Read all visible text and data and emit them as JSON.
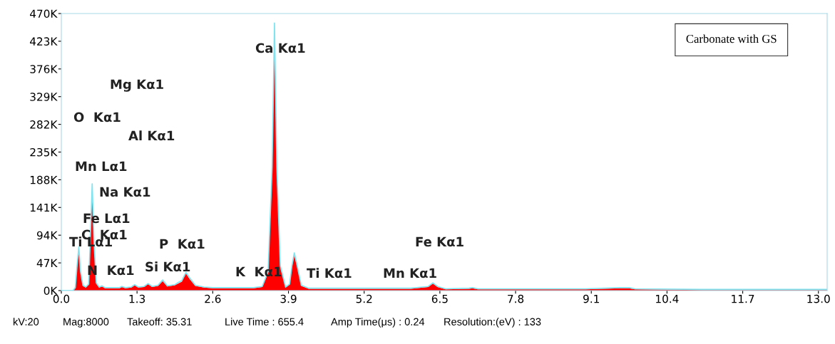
{
  "chart_data": {
    "type": "area",
    "x": [
      0.0,
      0.2,
      0.24,
      0.27,
      0.3,
      0.33,
      0.37,
      0.42,
      0.47,
      0.5,
      0.53,
      0.56,
      0.6,
      0.65,
      0.7,
      0.75,
      0.9,
      1.0,
      1.04,
      1.1,
      1.2,
      1.26,
      1.32,
      1.42,
      1.49,
      1.56,
      1.66,
      1.74,
      1.82,
      1.95,
      2.01,
      2.07,
      2.14,
      2.2,
      2.3,
      2.45,
      2.6,
      3.0,
      3.3,
      3.45,
      3.55,
      3.62,
      3.66,
      3.7,
      3.76,
      3.85,
      3.92,
      3.96,
      4.0,
      4.05,
      4.12,
      4.25,
      5.0,
      6.0,
      6.3,
      6.38,
      6.46,
      6.6,
      7.0,
      7.06,
      7.15,
      8.0,
      9.0,
      9.6,
      9.75,
      9.85,
      11.0,
      13.15
    ],
    "series": [
      {
        "color": "#ff0000",
        "values": [
          0,
          0,
          5000,
          40000,
          71000,
          30000,
          8000,
          5000,
          10000,
          90000,
          175000,
          80000,
          12000,
          5000,
          7000,
          4000,
          4000,
          4000,
          6000,
          4000,
          5000,
          9000,
          5000,
          6000,
          11000,
          6000,
          8000,
          16000,
          7000,
          9000,
          12000,
          15000,
          29000,
          20000,
          8000,
          5000,
          4000,
          4000,
          4000,
          6000,
          30000,
          200000,
          436000,
          200000,
          40000,
          5000,
          10000,
          40000,
          60000,
          40000,
          8000,
          3000,
          3000,
          3000,
          6000,
          12000,
          6000,
          2000,
          3000,
          4000,
          2000,
          2000,
          2000,
          4000,
          4000,
          2000,
          1000,
          1000
        ]
      },
      {
        "type": "line",
        "color": "#7fe3f0",
        "values": [
          0,
          0,
          5000,
          42000,
          74000,
          32000,
          9000,
          6000,
          11000,
          95000,
          181000,
          84000,
          13000,
          6000,
          8000,
          5000,
          5000,
          5000,
          7000,
          5000,
          6000,
          10000,
          6000,
          7000,
          12000,
          7000,
          9000,
          18000,
          8000,
          10000,
          14000,
          17000,
          31000,
          22000,
          9000,
          6000,
          5000,
          5000,
          5000,
          7000,
          32000,
          210000,
          454000,
          210000,
          42000,
          6000,
          11000,
          42000,
          64000,
          42000,
          9000,
          4000,
          4000,
          4000,
          7000,
          13000,
          7000,
          3000,
          4000,
          5000,
          3000,
          3000,
          3000,
          5000,
          5000,
          3000,
          2000,
          2000
        ]
      }
    ],
    "xlim": [
      0,
      13.15
    ],
    "xticks": [
      {
        "value": 0,
        "label": "0.0"
      },
      1.3,
      2.6,
      3.9,
      5.2,
      6.5,
      7.8,
      9.1,
      10.4,
      11.7,
      {
        "value": 13,
        "label": "13.0"
      }
    ],
    "ylim": [
      0,
      470000
    ],
    "yticks": [
      {
        "value": 0,
        "label": "0K"
      },
      {
        "value": 47000,
        "label": "47K"
      },
      {
        "value": 94000,
        "label": "94K"
      },
      {
        "value": 141000,
        "label": "141K"
      },
      {
        "value": 188000,
        "label": "188K"
      },
      {
        "value": 235000,
        "label": "235K"
      },
      {
        "value": 282000,
        "label": "282K"
      },
      {
        "value": 329000,
        "label": "329K"
      },
      {
        "value": 376000,
        "label": "376K"
      },
      {
        "value": 423000,
        "label": "423K"
      },
      {
        "value": 470000,
        "label": "470K"
      }
    ],
    "grid": false,
    "legend": false,
    "marker": "none",
    "line_style": "solid",
    "annotations": [
      "Ca Kα1",
      "Mg Kα1",
      "O  Kα1",
      "Al Kα1",
      "Mn Lα1",
      "Na Kα1",
      "Fe Lα1",
      "C  Kα1",
      "Ti Lα1",
      "P  Kα1",
      "Fe Kα1",
      "Si Kα1",
      "N  Kα1",
      "K  Kα1",
      "Ti Kα1",
      "Mn Kα1",
      "Carbonate with GS",
      "kV:20",
      "Mag:8000",
      "Takeoff: 35.31",
      "Live Time : 655.4",
      "Amp Time(μs) : 0.24",
      "Resolution:(eV) : 133"
    ]
  }
}
